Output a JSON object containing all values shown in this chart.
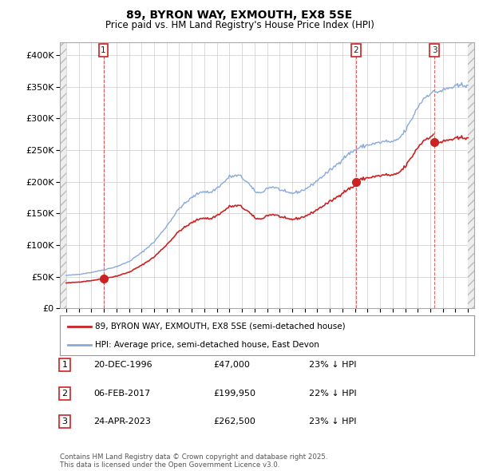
{
  "title": "89, BYRON WAY, EXMOUTH, EX8 5SE",
  "subtitle": "Price paid vs. HM Land Registry's House Price Index (HPI)",
  "background_color": "#ffffff",
  "plot_bg_color": "#ffffff",
  "grid_color": "#cccccc",
  "hpi_color": "#88aadd",
  "price_color": "#cc2222",
  "ylim": [
    0,
    420000
  ],
  "yticks": [
    0,
    50000,
    100000,
    150000,
    200000,
    250000,
    300000,
    350000,
    400000
  ],
  "xlim_start": 1993.5,
  "xlim_end": 2026.5,
  "sale_dates": [
    1996.97,
    2017.09,
    2023.32
  ],
  "sale_prices": [
    47000,
    199950,
    262500
  ],
  "sale_labels": [
    "1",
    "2",
    "3"
  ],
  "legend_price_label": "89, BYRON WAY, EXMOUTH, EX8 5SE (semi-detached house)",
  "legend_hpi_label": "HPI: Average price, semi-detached house, East Devon",
  "table_rows": [
    [
      "1",
      "20-DEC-1996",
      "£47,000",
      "23% ↓ HPI"
    ],
    [
      "2",
      "06-FEB-2017",
      "£199,950",
      "22% ↓ HPI"
    ],
    [
      "3",
      "24-APR-2023",
      "£262,500",
      "23% ↓ HPI"
    ]
  ],
  "footnote": "Contains HM Land Registry data © Crown copyright and database right 2025.\nThis data is licensed under the Open Government Licence v3.0.",
  "hpi_checkpoints": [
    [
      1994.0,
      52000
    ],
    [
      1995.0,
      54000
    ],
    [
      1996.0,
      57000
    ],
    [
      1997.0,
      61000
    ],
    [
      1998.0,
      66000
    ],
    [
      1999.0,
      74000
    ],
    [
      2000.0,
      88000
    ],
    [
      2001.0,
      105000
    ],
    [
      2002.0,
      130000
    ],
    [
      2003.0,
      158000
    ],
    [
      2004.0,
      175000
    ],
    [
      2004.8,
      185000
    ],
    [
      2005.5,
      183000
    ],
    [
      2006.0,
      190000
    ],
    [
      2006.5,
      198000
    ],
    [
      2007.0,
      208000
    ],
    [
      2007.8,
      210000
    ],
    [
      2008.5,
      198000
    ],
    [
      2009.0,
      185000
    ],
    [
      2009.5,
      182000
    ],
    [
      2010.0,
      190000
    ],
    [
      2010.5,
      192000
    ],
    [
      2011.0,
      188000
    ],
    [
      2011.5,
      183000
    ],
    [
      2012.0,
      182000
    ],
    [
      2012.5,
      184000
    ],
    [
      2013.0,
      188000
    ],
    [
      2013.5,
      194000
    ],
    [
      2014.0,
      202000
    ],
    [
      2014.5,
      210000
    ],
    [
      2015.0,
      218000
    ],
    [
      2015.5,
      226000
    ],
    [
      2016.0,
      236000
    ],
    [
      2016.5,
      244000
    ],
    [
      2017.0,
      250000
    ],
    [
      2017.5,
      255000
    ],
    [
      2018.0,
      258000
    ],
    [
      2018.5,
      260000
    ],
    [
      2019.0,
      262000
    ],
    [
      2019.5,
      264000
    ],
    [
      2020.0,
      262000
    ],
    [
      2020.5,
      268000
    ],
    [
      2021.0,
      280000
    ],
    [
      2021.5,
      298000
    ],
    [
      2022.0,
      318000
    ],
    [
      2022.5,
      332000
    ],
    [
      2023.0,
      340000
    ],
    [
      2023.5,
      342000
    ],
    [
      2024.0,
      344000
    ],
    [
      2024.5,
      348000
    ],
    [
      2025.0,
      350000
    ],
    [
      2025.5,
      352000
    ],
    [
      2026.0,
      354000
    ]
  ]
}
